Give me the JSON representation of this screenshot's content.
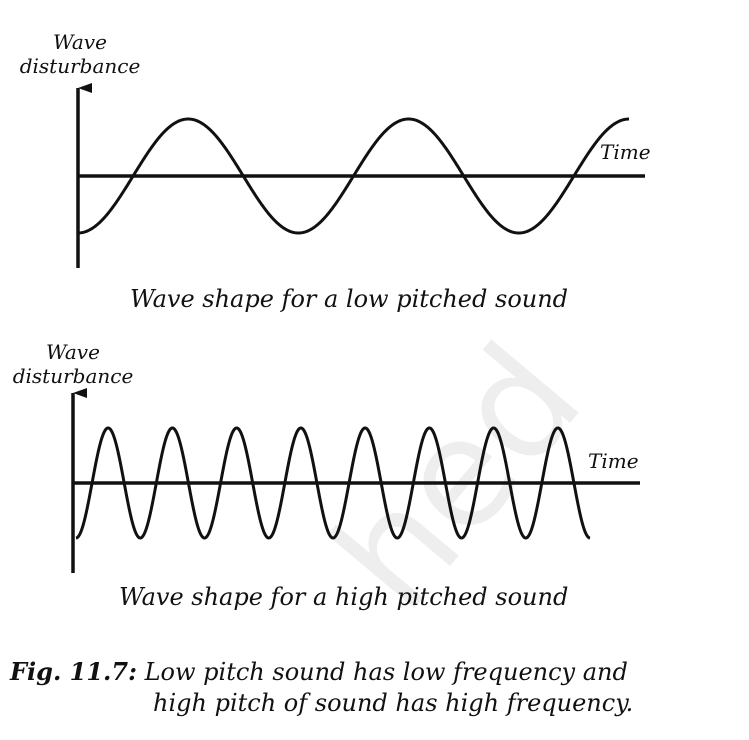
{
  "watermark": "hed",
  "chart_data": [
    {
      "type": "line",
      "ylabel": [
        "Wave",
        "disturbance"
      ],
      "xlabel": "Time",
      "caption": "Wave shape for a low pitched sound",
      "cycles": 2.5,
      "series": [
        {
          "values": "sine wave"
        }
      ]
    },
    {
      "type": "line",
      "ylabel": [
        "Wave",
        "disturbance"
      ],
      "xlabel": "Time",
      "caption": "Wave shape for a high pitched sound",
      "cycles": 8,
      "series": [
        {
          "values": "sine wave"
        }
      ]
    }
  ],
  "figure": {
    "number": "Fig. 11.7:",
    "line1": "Low pitch sound has low frequency and",
    "line2": "high pitch of sound has high frequency."
  }
}
